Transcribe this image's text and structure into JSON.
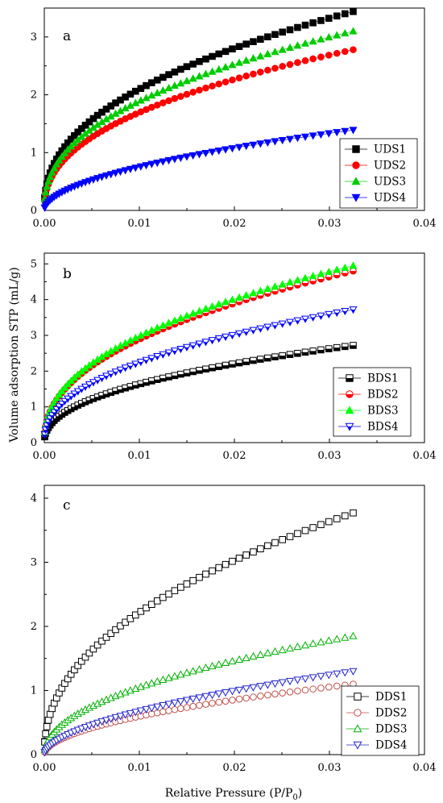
{
  "figure": {
    "ylabel": "Volume adsorption STP (mL/g)",
    "xlabel_main": "Relative Pressure (P/P",
    "xlabel_sub": "0",
    "xlabel_end": ")"
  },
  "chart_data": [
    {
      "type": "scatter",
      "panel_label": "a",
      "xlim": [
        0,
        0.04
      ],
      "ylim": [
        0,
        3.5
      ],
      "x_ticks": [
        "0.00",
        "0.01",
        "0.02",
        "0.03",
        "0.04"
      ],
      "y_ticks": [
        "0",
        "1",
        "2",
        "3"
      ],
      "legend_position": "bottom-right",
      "grid": false,
      "series": [
        {
          "name": "UDS1",
          "marker": "square",
          "fill": "filled",
          "color": "#000000",
          "a": 3.44,
          "n": 0.42
        },
        {
          "name": "UDS2",
          "marker": "circle",
          "fill": "filled",
          "color": "#ff0000",
          "a": 2.78,
          "n": 0.42
        },
        {
          "name": "UDS3",
          "marker": "triangle-up",
          "fill": "filled",
          "color": "#00cc00",
          "a": 3.1,
          "n": 0.42
        },
        {
          "name": "UDS4",
          "marker": "triangle-down",
          "fill": "filled",
          "color": "#0000ff",
          "a": 1.39,
          "n": 0.52
        }
      ]
    },
    {
      "type": "scatter",
      "panel_label": "b",
      "xlim": [
        0,
        0.04
      ],
      "ylim": [
        0,
        5.3
      ],
      "x_ticks": [
        "0.00",
        "0.01",
        "0.02",
        "0.03",
        "0.04"
      ],
      "y_ticks": [
        "0",
        "1",
        "2",
        "3",
        "4",
        "5"
      ],
      "legend_position": "bottom-right",
      "grid": false,
      "series": [
        {
          "name": "BDS1",
          "marker": "square",
          "fill": "half",
          "color": "#000000",
          "a": 2.72,
          "n": 0.43
        },
        {
          "name": "BDS2",
          "marker": "circle",
          "fill": "half",
          "color": "#ff0000",
          "a": 4.8,
          "n": 0.43
        },
        {
          "name": "BDS3",
          "marker": "triangle-up",
          "fill": "filled",
          "color": "#00ff00",
          "a": 4.95,
          "n": 0.43
        },
        {
          "name": "BDS4",
          "marker": "triangle-down",
          "fill": "half",
          "color": "#0000ff",
          "a": 3.72,
          "n": 0.43
        }
      ]
    },
    {
      "type": "scatter",
      "panel_label": "c",
      "xlim": [
        0,
        0.04
      ],
      "ylim": [
        0,
        4.2
      ],
      "x_ticks": [
        "0.00",
        "0.01",
        "0.02",
        "0.03",
        "0.04"
      ],
      "y_ticks": [
        "0",
        "1",
        "2",
        "3",
        "4"
      ],
      "legend_position": "bottom-right",
      "grid": false,
      "series": [
        {
          "name": "DDS1",
          "marker": "square",
          "fill": "open",
          "color": "#000000",
          "a": 3.77,
          "n": 0.45
        },
        {
          "name": "DDS2",
          "marker": "circle",
          "fill": "open",
          "color": "#c0504d",
          "a": 1.1,
          "n": 0.52
        },
        {
          "name": "DDS3",
          "marker": "triangle-up",
          "fill": "open",
          "color": "#00b000",
          "a": 1.85,
          "n": 0.48
        },
        {
          "name": "DDS4",
          "marker": "triangle-down",
          "fill": "open",
          "color": "#2222cc",
          "a": 1.3,
          "n": 0.55
        }
      ]
    }
  ]
}
